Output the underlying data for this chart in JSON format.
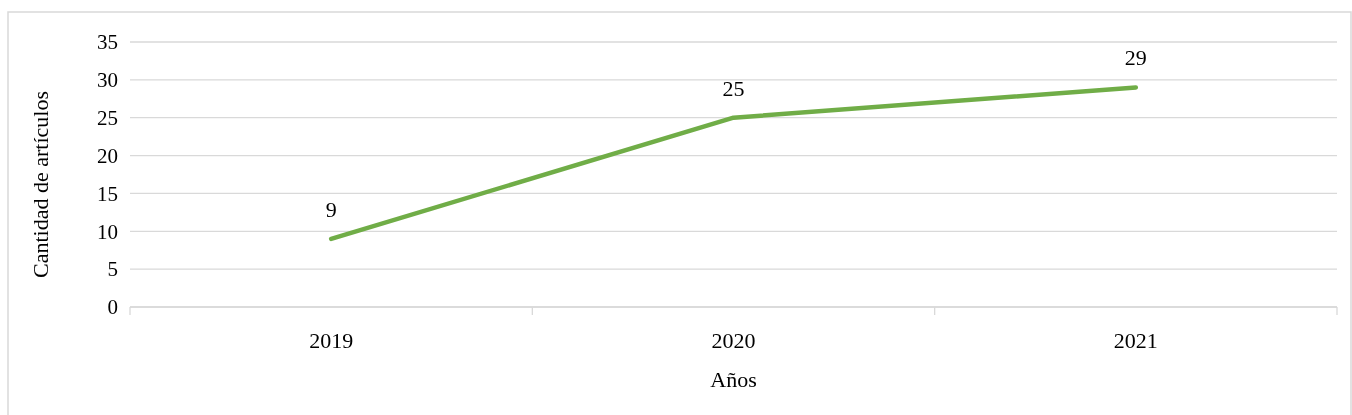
{
  "chart_data": {
    "type": "line",
    "xlabel": "Años",
    "ylabel": "Cantidad de artículos",
    "categories": [
      "2019",
      "2020",
      "2021"
    ],
    "series": [
      {
        "color": "#70ad47",
        "values": [
          9,
          25,
          29
        ]
      }
    ],
    "ylim": [
      0,
      35
    ],
    "yticks": [
      0,
      5,
      10,
      15,
      20,
      25,
      30,
      35
    ],
    "grid": "y",
    "data_labels": true,
    "marker": "none",
    "line_style": "solid"
  }
}
